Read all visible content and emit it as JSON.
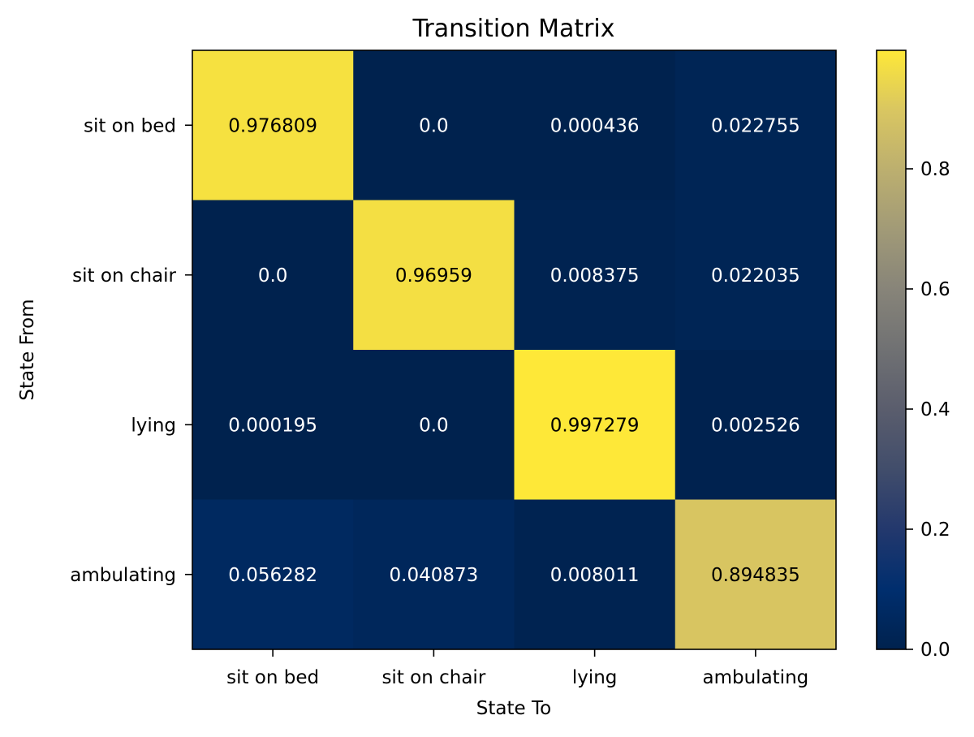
{
  "chart_data": {
    "type": "heatmap",
    "title": "Transition Matrix",
    "xlabel": "State To",
    "ylabel": "State From",
    "x_categories": [
      "sit on bed",
      "sit on chair",
      "lying",
      "ambulating"
    ],
    "y_categories": [
      "sit on bed",
      "sit on chair",
      "lying",
      "ambulating"
    ],
    "values": [
      [
        0.976809,
        0.0,
        0.000436,
        0.022755
      ],
      [
        0.0,
        0.96959,
        0.008375,
        0.022035
      ],
      [
        0.000195,
        0.0,
        0.997279,
        0.002526
      ],
      [
        0.056282,
        0.040873,
        0.008011,
        0.894835
      ]
    ],
    "cell_labels": [
      [
        "0.976809",
        "0.0",
        "0.000436",
        "0.022755"
      ],
      [
        "0.0",
        "0.96959",
        "0.008375",
        "0.022035"
      ],
      [
        "0.000195",
        "0.0",
        "0.997279",
        "0.002526"
      ],
      [
        "0.056282",
        "0.040873",
        "0.008011",
        "0.894835"
      ]
    ],
    "colormap": "cividis",
    "colorbar": {
      "range": [
        0.0,
        0.997279
      ],
      "ticks": [
        0.0,
        0.2,
        0.4,
        0.6,
        0.8
      ],
      "tick_labels": [
        "0.0",
        "0.2",
        "0.4",
        "0.6",
        "0.8"
      ]
    },
    "grid": false
  }
}
